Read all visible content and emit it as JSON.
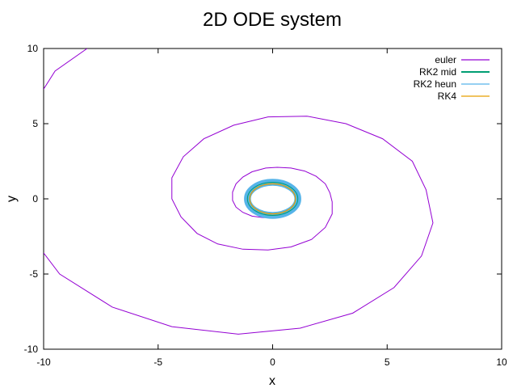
{
  "chart_data": {
    "type": "line",
    "title": "2D ODE system",
    "xlabel": "x",
    "ylabel": "y",
    "xlim": [
      -10,
      10
    ],
    "ylim": [
      -10,
      10
    ],
    "xticks": [
      "-10",
      "-5",
      "0",
      "5",
      "10"
    ],
    "yticks": [
      "10",
      "5",
      "0",
      "-5",
      "-10"
    ],
    "grid": false,
    "legend_position": "top-right",
    "series": [
      {
        "name": "euler",
        "color": "#9400d3",
        "points": [
          [
            -10.0,
            7.3
          ],
          [
            -9.5,
            8.5
          ],
          [
            -8.1,
            10.0
          ],
          [
            -10.0,
            -3.6
          ],
          [
            -9.3,
            -5.0
          ],
          [
            -7.0,
            -7.2
          ],
          [
            -4.4,
            -8.5
          ],
          [
            -1.5,
            -9.0
          ],
          [
            1.2,
            -8.6
          ],
          [
            3.5,
            -7.6
          ],
          [
            5.3,
            -5.9
          ],
          [
            6.5,
            -3.8
          ],
          [
            7.0,
            -1.6
          ],
          [
            6.7,
            0.6
          ],
          [
            6.1,
            2.5
          ],
          [
            4.8,
            4.0
          ],
          [
            3.2,
            5.0
          ],
          [
            1.5,
            5.5
          ],
          [
            -0.2,
            5.45
          ],
          [
            -1.7,
            4.9
          ],
          [
            -3.0,
            4.0
          ],
          [
            -3.9,
            2.8
          ],
          [
            -4.4,
            1.4
          ],
          [
            -4.4,
            0.0
          ],
          [
            -4.0,
            -1.2
          ],
          [
            -3.3,
            -2.3
          ],
          [
            -2.4,
            -3.0
          ],
          [
            -1.3,
            -3.35
          ],
          [
            -0.2,
            -3.4
          ],
          [
            0.8,
            -3.2
          ],
          [
            1.7,
            -2.7
          ],
          [
            2.3,
            -1.9
          ],
          [
            2.6,
            -1.0
          ],
          [
            2.6,
            -0.2
          ],
          [
            2.5,
            0.4
          ],
          [
            2.3,
            1.0
          ],
          [
            1.9,
            1.5
          ],
          [
            1.4,
            1.85
          ],
          [
            0.8,
            2.05
          ],
          [
            0.2,
            2.1
          ],
          [
            -0.3,
            2.05
          ],
          [
            -0.9,
            1.8
          ],
          [
            -1.3,
            1.45
          ],
          [
            -1.6,
            1.0
          ],
          [
            -1.75,
            0.45
          ],
          [
            -1.75,
            -0.1
          ],
          [
            -1.6,
            -0.55
          ],
          [
            -1.3,
            -0.9
          ],
          [
            -0.9,
            -1.15
          ],
          [
            -0.4,
            -1.25
          ],
          [
            0.1,
            -1.2
          ]
        ]
      },
      {
        "name": "RK2 mid",
        "color": "#009e73",
        "radius": 1.1
      },
      {
        "name": "RK2 heun",
        "color": "#56b4e9",
        "radius_range": [
          0.95,
          1.25
        ]
      },
      {
        "name": "RK4",
        "color": "#e69f00",
        "radius": 1.0
      }
    ]
  }
}
